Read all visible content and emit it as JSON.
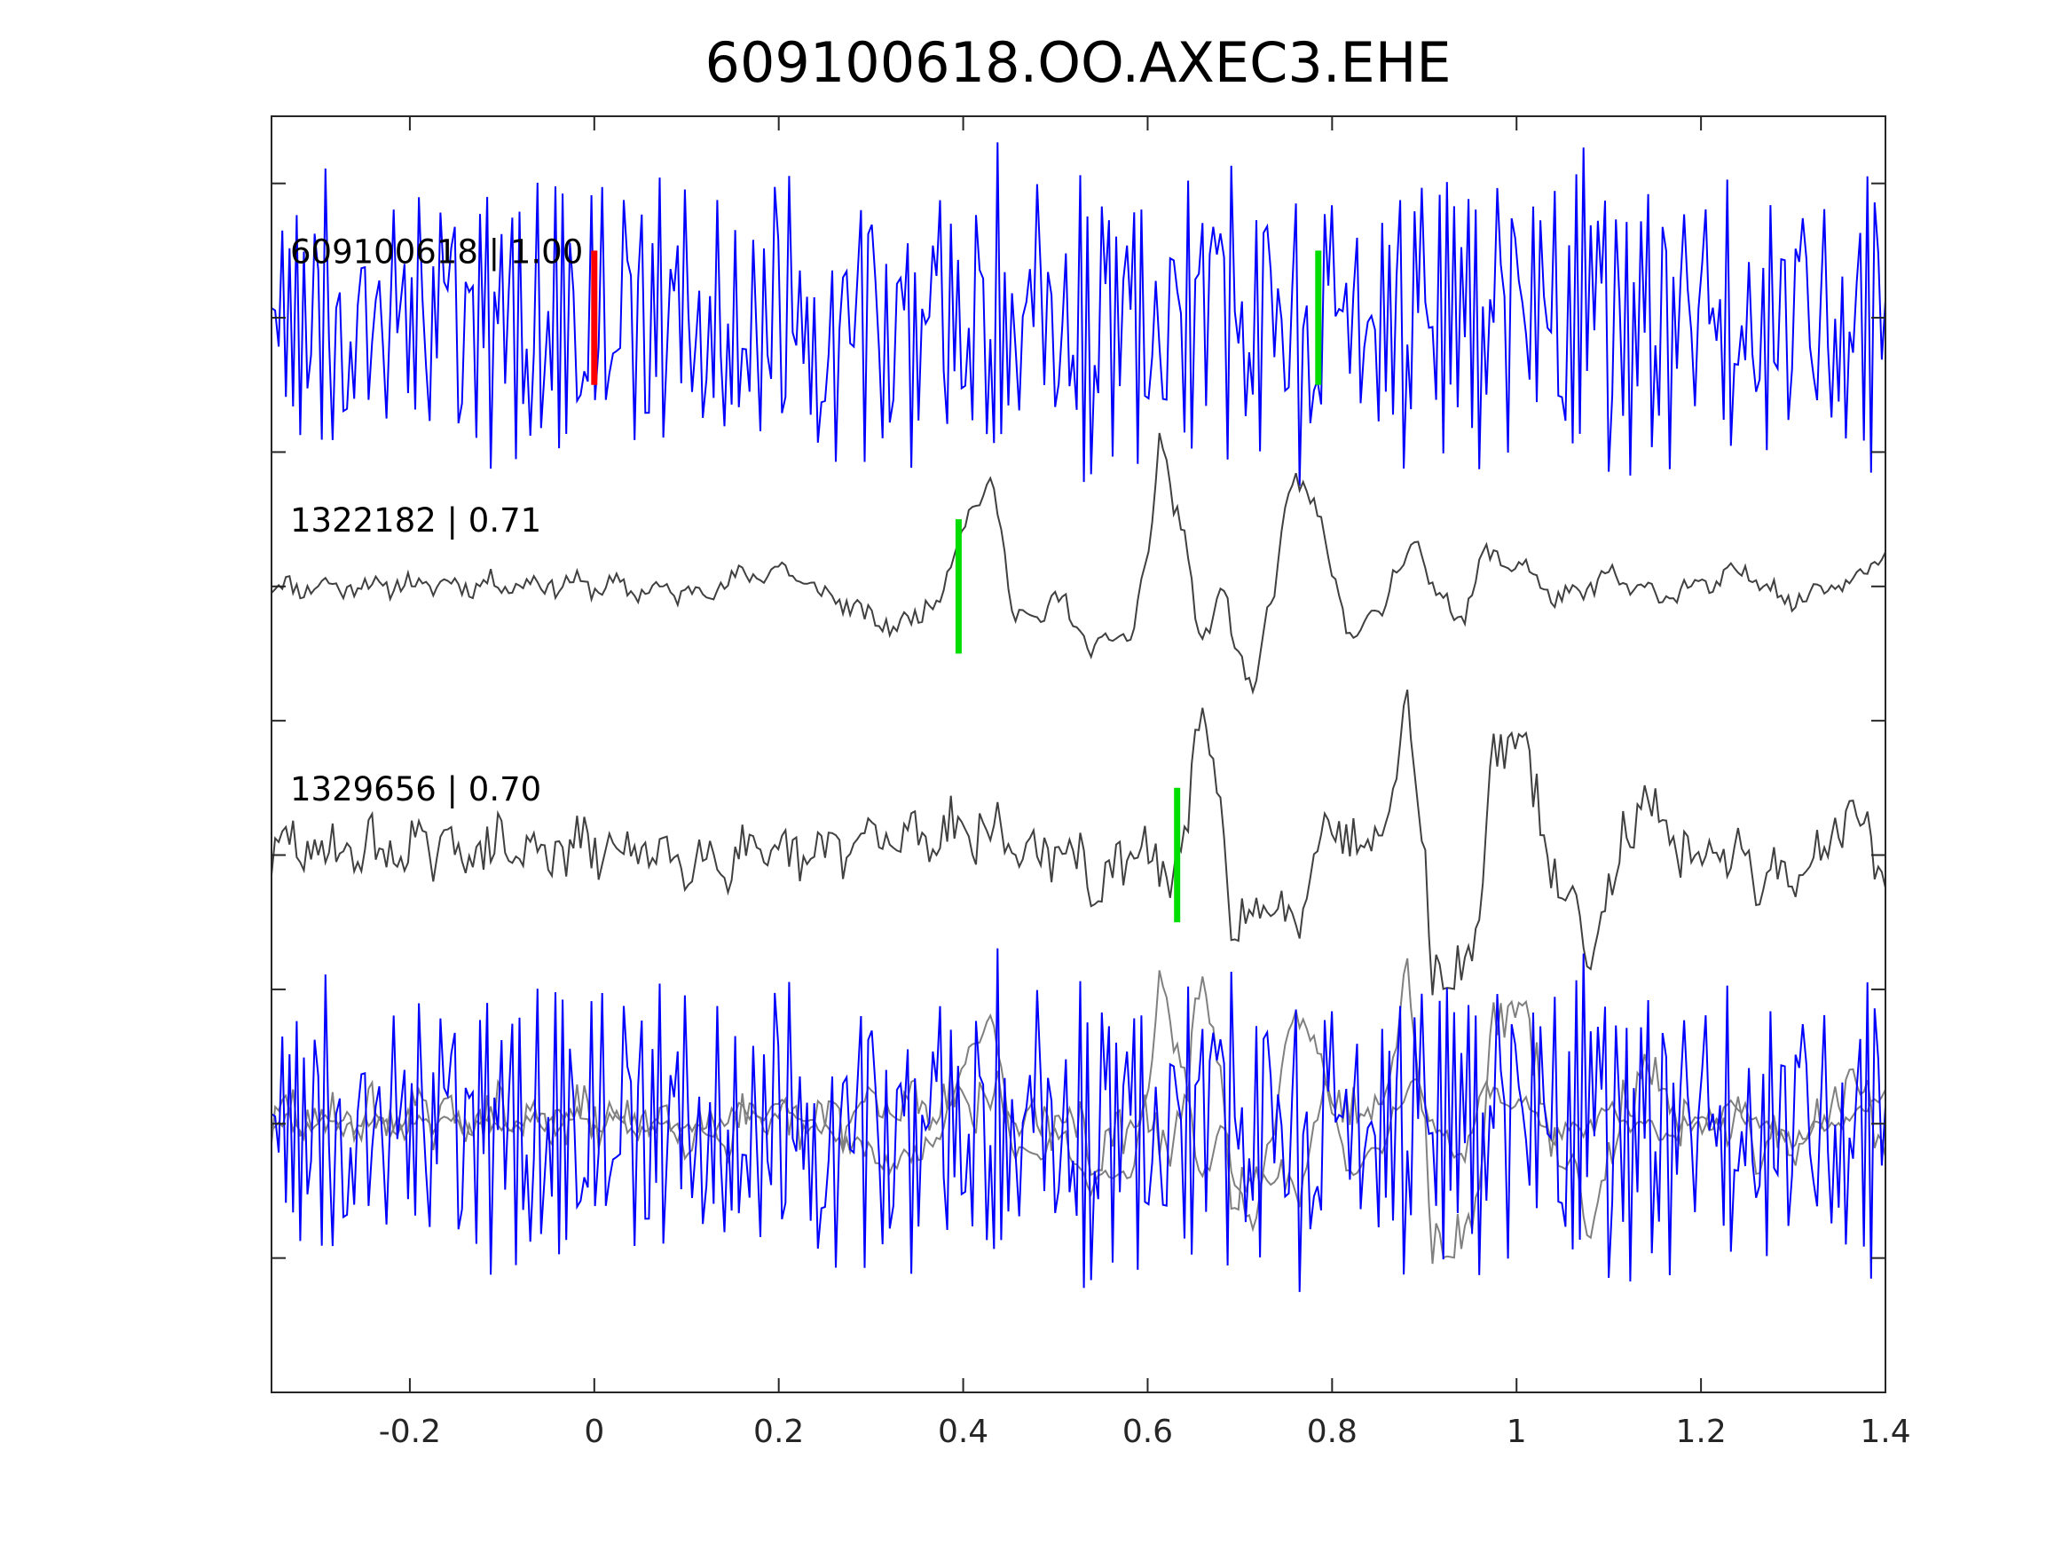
{
  "chart_data": {
    "type": "line",
    "title": "609100618.OO.AXEC3.EHE",
    "xlabel": "",
    "ylabel": "",
    "xlim": [
      -0.35,
      1.4
    ],
    "x_ticks": [
      "-0.2",
      "0",
      "0.2",
      "0.4",
      "0.6",
      "0.8",
      "1",
      "1.2",
      "1.4"
    ],
    "x_tick_values": [
      -0.2,
      0,
      0.2,
      0.4,
      0.6,
      0.8,
      1.0,
      1.2,
      1.4
    ],
    "ylim": [
      -4.5,
      0.25
    ],
    "y_tick_values": [
      -4.0,
      -3.5,
      -3.0,
      -2.5,
      -2.0,
      -1.5,
      -1.0,
      -0.5,
      0.0
    ],
    "colors": {
      "master": "#0000ff",
      "template": "#404040",
      "overlay_template": "#808080",
      "pick_primary": "#ff0000",
      "pick_secondary": "#00dd00"
    },
    "series": [
      {
        "name": "609100618 | 1.00",
        "label": "609100618 | 1.00",
        "offset": -0.5,
        "color": "#0000ff",
        "style": "noisy",
        "picks": [
          {
            "t": 0.0,
            "color": "#ff0000"
          },
          {
            "t": 0.785,
            "color": "#00dd00"
          }
        ]
      },
      {
        "name": "1322182 | 0.71",
        "label": "1322182 | 0.71",
        "offset": -1.5,
        "color": "#404040",
        "style": "wave",
        "picks": [
          {
            "t": 0.395,
            "color": "#00dd00"
          }
        ],
        "anchors": [
          [
            -0.35,
            0.0
          ],
          [
            -0.05,
            0.01
          ],
          [
            0.1,
            -0.02
          ],
          [
            0.2,
            0.06
          ],
          [
            0.26,
            -0.04
          ],
          [
            0.3,
            -0.12
          ],
          [
            0.33,
            -0.15
          ],
          [
            0.37,
            -0.05
          ],
          [
            0.41,
            0.3
          ],
          [
            0.43,
            0.35
          ],
          [
            0.46,
            -0.1
          ],
          [
            0.48,
            -0.15
          ],
          [
            0.5,
            -0.02
          ],
          [
            0.53,
            -0.2
          ],
          [
            0.55,
            -0.22
          ],
          [
            0.58,
            -0.18
          ],
          [
            0.6,
            0.1
          ],
          [
            0.615,
            0.55
          ],
          [
            0.63,
            0.3
          ],
          [
            0.66,
            -0.2
          ],
          [
            0.68,
            0.0
          ],
          [
            0.7,
            -0.3
          ],
          [
            0.715,
            -0.38
          ],
          [
            0.73,
            -0.1
          ],
          [
            0.76,
            0.42
          ],
          [
            0.78,
            0.3
          ],
          [
            0.8,
            0.05
          ],
          [
            0.82,
            -0.18
          ],
          [
            0.85,
            -0.1
          ],
          [
            0.87,
            0.05
          ],
          [
            0.89,
            0.18
          ],
          [
            0.91,
            -0.02
          ],
          [
            0.94,
            -0.1
          ],
          [
            0.97,
            0.12
          ],
          [
            1.0,
            0.08
          ],
          [
            1.05,
            -0.05
          ],
          [
            1.1,
            0.03
          ],
          [
            1.15,
            -0.03
          ],
          [
            1.2,
            0.0
          ],
          [
            1.25,
            0.05
          ],
          [
            1.3,
            -0.05
          ],
          [
            1.35,
            0.02
          ],
          [
            1.4,
            0.11
          ]
        ]
      },
      {
        "name": "1329656 | 0.70",
        "label": "1329656 | 0.70",
        "offset": -2.5,
        "color": "#404040",
        "style": "wave",
        "picks": [
          {
            "t": 0.632,
            "color": "#00dd00"
          }
        ],
        "anchors": [
          [
            -0.35,
            0.02
          ],
          [
            0.0,
            0.02
          ],
          [
            0.2,
            -0.02
          ],
          [
            0.3,
            0.05
          ],
          [
            0.4,
            0.1
          ],
          [
            0.5,
            0.0
          ],
          [
            0.56,
            -0.1
          ],
          [
            0.6,
            0.05
          ],
          [
            0.62,
            -0.15
          ],
          [
            0.64,
            0.15
          ],
          [
            0.66,
            0.45
          ],
          [
            0.68,
            0.2
          ],
          [
            0.69,
            -0.25
          ],
          [
            0.7,
            -0.28
          ],
          [
            0.72,
            -0.2
          ],
          [
            0.74,
            -0.25
          ],
          [
            0.76,
            -0.2
          ],
          [
            0.79,
            0.1
          ],
          [
            0.82,
            0.1
          ],
          [
            0.84,
            0.0
          ],
          [
            0.86,
            0.25
          ],
          [
            0.88,
            0.5
          ],
          [
            0.895,
            0.2
          ],
          [
            0.91,
            -0.4
          ],
          [
            0.925,
            -0.55
          ],
          [
            0.94,
            -0.4
          ],
          [
            0.96,
            -0.2
          ],
          [
            0.975,
            0.35
          ],
          [
            0.99,
            0.45
          ],
          [
            1.0,
            0.47
          ],
          [
            1.02,
            0.2
          ],
          [
            1.04,
            -0.05
          ],
          [
            1.06,
            -0.22
          ],
          [
            1.08,
            -0.3
          ],
          [
            1.1,
            -0.15
          ],
          [
            1.12,
            0.12
          ],
          [
            1.14,
            0.18
          ],
          [
            1.16,
            0.05
          ],
          [
            1.2,
            0.0
          ],
          [
            1.3,
            -0.08
          ],
          [
            1.37,
            0.15
          ],
          [
            1.4,
            -0.1
          ]
        ]
      },
      {
        "name": "overlay",
        "label": "",
        "offset": -3.5,
        "color": "#0000ff",
        "style": "overlay",
        "picks": []
      }
    ]
  }
}
